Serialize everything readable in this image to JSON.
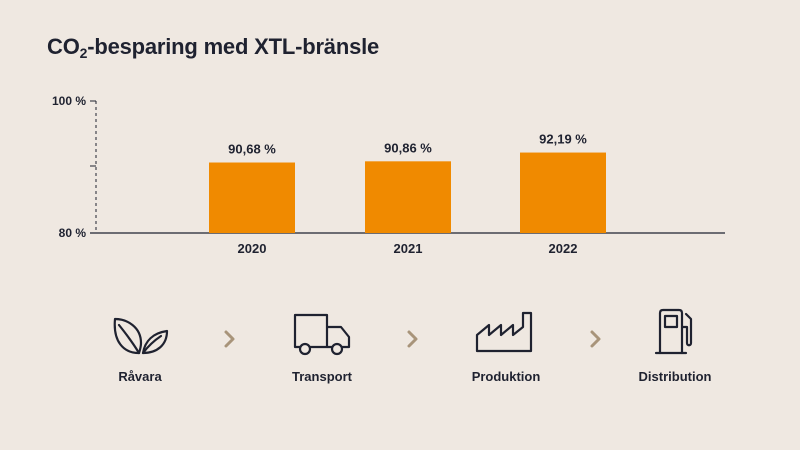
{
  "title": {
    "prefix": "CO",
    "sub": "2",
    "suffix": "-besparing med XTL-bränsle"
  },
  "colors": {
    "bar": "#f08a00",
    "text": "#1f2230",
    "axis": "#1f2230",
    "chevron": "#a8947a",
    "background": "#efe8e1"
  },
  "chart_data": {
    "type": "bar",
    "categories": [
      "2020",
      "2021",
      "2022"
    ],
    "values": [
      90.68,
      90.86,
      92.19
    ],
    "value_labels": [
      "90,68 %",
      "90,86 %",
      "92,19 %"
    ],
    "title": "CO2-besparing med XTL-bränsle",
    "xlabel": "",
    "ylabel": "",
    "ylim": [
      80,
      100
    ],
    "yticks": [
      80,
      100
    ],
    "ytick_labels": [
      "80 %",
      "100 %"
    ],
    "axis_break": true,
    "grid": false
  },
  "process": {
    "steps": [
      {
        "label": "Råvara",
        "icon": "leaves-icon"
      },
      {
        "label": "Transport",
        "icon": "truck-icon"
      },
      {
        "label": "Produktion",
        "icon": "factory-icon"
      },
      {
        "label": "Distribution",
        "icon": "fuel-pump-icon"
      }
    ],
    "separator_icon": "chevron-right-icon"
  }
}
